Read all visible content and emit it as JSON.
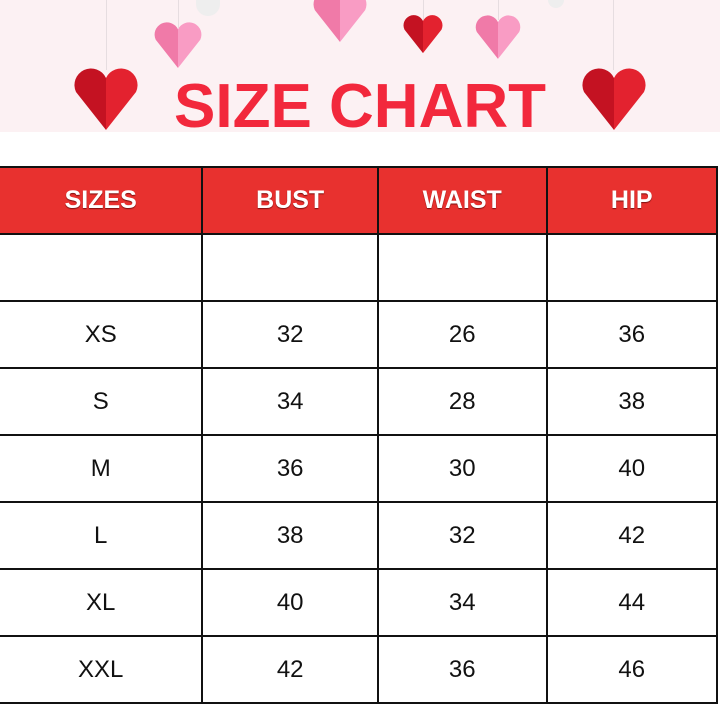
{
  "banner": {
    "title": "SIZE CHART",
    "accent_color": "#f2283c",
    "heart_colors": [
      "#e0202e",
      "#f78fb8"
    ]
  },
  "table": {
    "header_color": "#e8312f",
    "headers": [
      "SIZES",
      "BUST",
      "WAIST",
      "HIP"
    ],
    "rows": [
      [
        "",
        "",
        "",
        ""
      ],
      [
        "XS",
        "32",
        "26",
        "36"
      ],
      [
        "S",
        "34",
        "28",
        "38"
      ],
      [
        "M",
        "36",
        "30",
        "40"
      ],
      [
        "L",
        "38",
        "32",
        "42"
      ],
      [
        "XL",
        "40",
        "34",
        "44"
      ],
      [
        "XXL",
        "42",
        "36",
        "46"
      ]
    ]
  }
}
